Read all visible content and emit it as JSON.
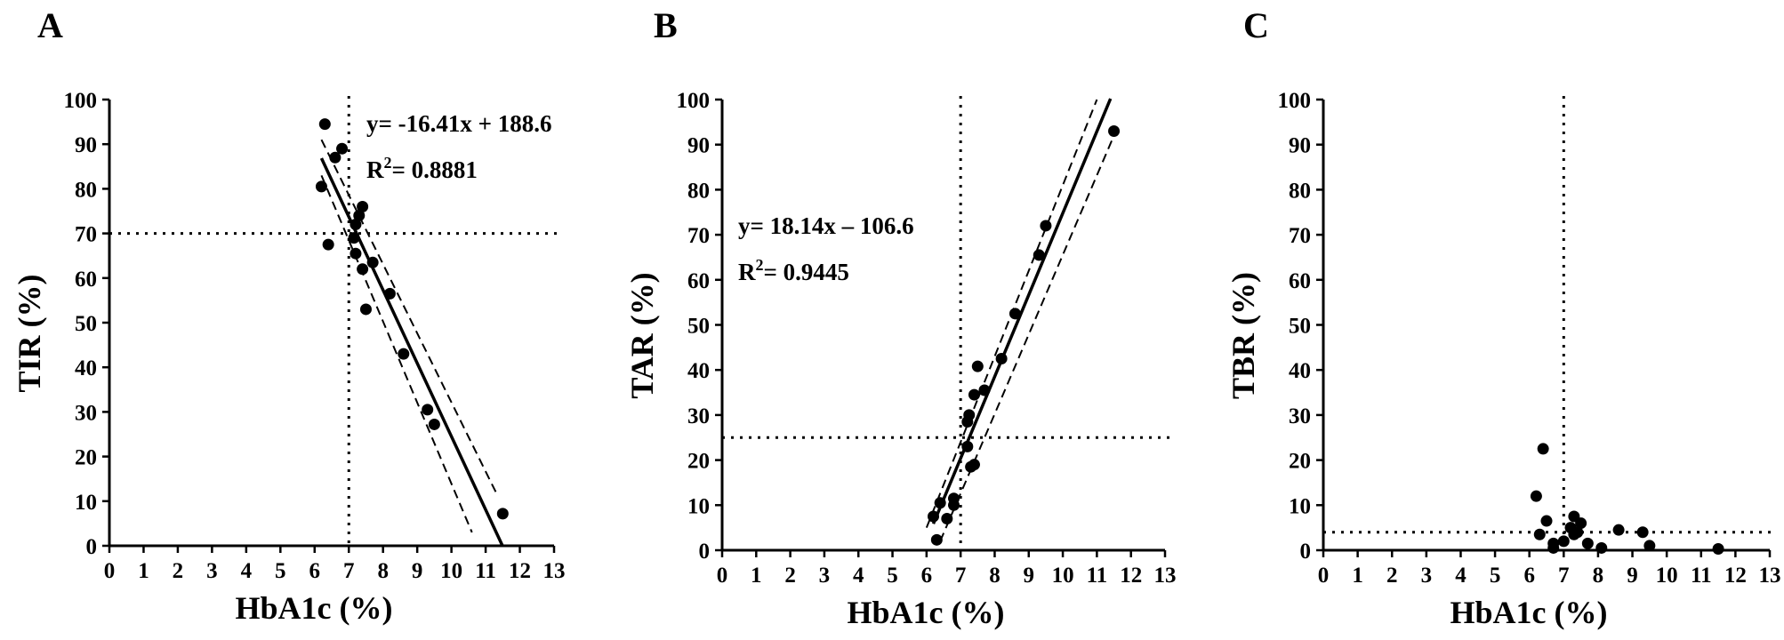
{
  "chart_data": [
    {
      "type": "scatter",
      "panel": "A",
      "xlabel": "HbA1c (%)",
      "ylabel": "TIR (%)",
      "xlim": [
        0,
        13
      ],
      "ylim": [
        0,
        100
      ],
      "xticks": [
        0,
        1,
        2,
        3,
        4,
        5,
        6,
        7,
        8,
        9,
        10,
        11,
        12,
        13
      ],
      "yticks": [
        0,
        10,
        20,
        30,
        40,
        50,
        60,
        70,
        80,
        90,
        100
      ],
      "ref_x": 7,
      "ref_y": 70,
      "equation": "y= -16.41x + 188.6",
      "r2_prefix": "R",
      "r2_sup": "2",
      "r2_value": "= 0.8881",
      "fit": {
        "slope": -16.41,
        "intercept": 188.6,
        "x_range": [
          6.2,
          11.5
        ]
      },
      "ci_lower": {
        "points": [
          [
            6.2,
            83
          ],
          [
            10.6,
            3
          ]
        ]
      },
      "ci_upper": {
        "points": [
          [
            6.2,
            91
          ],
          [
            11.3,
            12
          ]
        ]
      },
      "points": [
        [
          6.3,
          94.5
        ],
        [
          6.8,
          89
        ],
        [
          6.6,
          87
        ],
        [
          6.2,
          80.5
        ],
        [
          6.4,
          67.5
        ],
        [
          7.4,
          76
        ],
        [
          7.3,
          74
        ],
        [
          7.2,
          72
        ],
        [
          7.15,
          69
        ],
        [
          7.2,
          65.5
        ],
        [
          7.4,
          62
        ],
        [
          7.7,
          63.5
        ],
        [
          7.5,
          53
        ],
        [
          8.2,
          56.5
        ],
        [
          8.6,
          43
        ],
        [
          9.3,
          30.5
        ],
        [
          9.5,
          27.2
        ],
        [
          11.5,
          7.2
        ]
      ]
    },
    {
      "type": "scatter",
      "panel": "B",
      "xlabel": "HbA1c (%)",
      "ylabel": "TAR (%)",
      "xlim": [
        0,
        13
      ],
      "ylim": [
        0,
        100
      ],
      "xticks": [
        0,
        1,
        2,
        3,
        4,
        5,
        6,
        7,
        8,
        9,
        10,
        11,
        12,
        13
      ],
      "yticks": [
        0,
        10,
        20,
        30,
        40,
        50,
        60,
        70,
        80,
        90,
        100
      ],
      "ref_x": 7,
      "ref_y": 25,
      "equation": "y= 18.14x – 106.6",
      "r2_prefix": "R",
      "r2_sup": "2",
      "r2_value": "= 0.9445",
      "fit": {
        "slope": 18.14,
        "intercept": -106.6,
        "x_range": [
          6.2,
          11.4
        ]
      },
      "ci_lower": {
        "points": [
          [
            6.4,
            2
          ],
          [
            11.5,
            92
          ]
        ]
      },
      "ci_upper": {
        "points": [
          [
            6.0,
            5
          ],
          [
            11.0,
            100
          ]
        ]
      },
      "points": [
        [
          6.2,
          7.5
        ],
        [
          6.3,
          2.3
        ],
        [
          6.4,
          10.5
        ],
        [
          6.6,
          7
        ],
        [
          6.8,
          10
        ],
        [
          6.8,
          11.5
        ],
        [
          7.2,
          23
        ],
        [
          7.2,
          28.5
        ],
        [
          7.25,
          30
        ],
        [
          7.3,
          18.5
        ],
        [
          7.4,
          19
        ],
        [
          7.4,
          34.5
        ],
        [
          7.5,
          40.8
        ],
        [
          7.7,
          35.5
        ],
        [
          8.2,
          42.5
        ],
        [
          8.6,
          52.5
        ],
        [
          9.3,
          65.5
        ],
        [
          9.5,
          72
        ],
        [
          11.5,
          93
        ]
      ]
    },
    {
      "type": "scatter",
      "panel": "C",
      "xlabel": "HbA1c (%)",
      "ylabel": "TBR (%)",
      "xlim": [
        0,
        13
      ],
      "ylim": [
        0,
        100
      ],
      "xticks": [
        0,
        1,
        2,
        3,
        4,
        5,
        6,
        7,
        8,
        9,
        10,
        11,
        12,
        13
      ],
      "yticks": [
        0,
        10,
        20,
        30,
        40,
        50,
        60,
        70,
        80,
        90,
        100
      ],
      "ref_x": 7,
      "ref_y": 4,
      "points": [
        [
          6.2,
          12
        ],
        [
          6.4,
          22.5
        ],
        [
          6.3,
          3.5
        ],
        [
          6.5,
          6.5
        ],
        [
          6.7,
          1.5
        ],
        [
          6.7,
          0.5
        ],
        [
          7.0,
          2
        ],
        [
          7.2,
          5
        ],
        [
          7.3,
          7.5
        ],
        [
          7.3,
          3.5
        ],
        [
          7.4,
          4
        ],
        [
          7.5,
          6
        ],
        [
          7.7,
          1.5
        ],
        [
          8.1,
          0.5
        ],
        [
          8.6,
          4.5
        ],
        [
          9.3,
          4
        ],
        [
          9.5,
          1
        ],
        [
          11.5,
          0.3
        ]
      ]
    }
  ]
}
